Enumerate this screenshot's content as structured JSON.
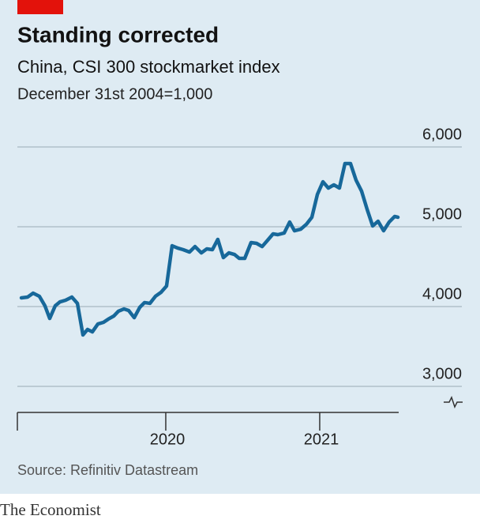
{
  "chart_data": {
    "type": "line",
    "title": "Standing corrected",
    "subtitle": "China, CSI 300 stockmarket index",
    "note": "December 31st 2004=1,000",
    "source": "Source: Refinitiv Datastream",
    "brand": "The Economist",
    "x": [
      2019.062,
      2019.103,
      2019.138,
      2019.179,
      2019.215,
      2019.246,
      2019.282,
      2019.313,
      2019.349,
      2019.39,
      2019.426,
      2019.462,
      2019.492,
      2019.523,
      2019.559,
      2019.595,
      2019.626,
      2019.662,
      2019.692,
      2019.728,
      2019.759,
      2019.795,
      2019.831,
      2019.862,
      2019.897,
      2019.933,
      2019.969,
      2020.005,
      2020.041,
      2020.077,
      2020.113,
      2020.154,
      2020.19,
      2020.231,
      2020.267,
      2020.303,
      2020.338,
      2020.374,
      2020.41,
      2020.446,
      2020.477,
      2020.513,
      2020.554,
      2020.59,
      2020.626,
      2020.662,
      2020.697,
      2020.728,
      2020.769,
      2020.805,
      2020.836,
      2020.877,
      2020.913,
      2020.949,
      2020.985,
      2021.021,
      2021.056,
      2021.092,
      2021.128,
      2021.164,
      2021.2,
      2021.236,
      2021.272,
      2021.308,
      2021.344,
      2021.379,
      2021.415,
      2021.451,
      2021.487,
      2021.508
    ],
    "series": [
      {
        "name": "CSI 300",
        "color": "#17689a",
        "values": [
          4109,
          4119,
          4168,
          4129,
          4010,
          3851,
          4010,
          4059,
          4079,
          4119,
          4040,
          3644,
          3713,
          3683,
          3782,
          3802,
          3842,
          3881,
          3941,
          3970,
          3950,
          3861,
          3990,
          4050,
          4040,
          4129,
          4178,
          4257,
          4762,
          4733,
          4713,
          4683,
          4752,
          4673,
          4723,
          4713,
          4842,
          4614,
          4673,
          4653,
          4604,
          4604,
          4802,
          4792,
          4752,
          4832,
          4911,
          4901,
          4921,
          5059,
          4950,
          4970,
          5030,
          5119,
          5406,
          5564,
          5485,
          5525,
          5485,
          5792,
          5792,
          5584,
          5446,
          5218,
          5010,
          5069,
          4950,
          5059,
          5129,
          5119
        ]
      }
    ],
    "xlim": [
      2019.036,
      2021.513
    ],
    "xticks": [
      {
        "value": 2020,
        "label": "2020"
      },
      {
        "value": 2021,
        "label": "2021"
      }
    ],
    "ylim": [
      2700,
      6250
    ],
    "yticks": [
      {
        "value": 3000,
        "label": "3,000"
      },
      {
        "value": 4000,
        "label": "4,000"
      },
      {
        "value": 5000,
        "label": "5,000"
      },
      {
        "value": 6000,
        "label": "6,000"
      }
    ],
    "grid": true
  }
}
